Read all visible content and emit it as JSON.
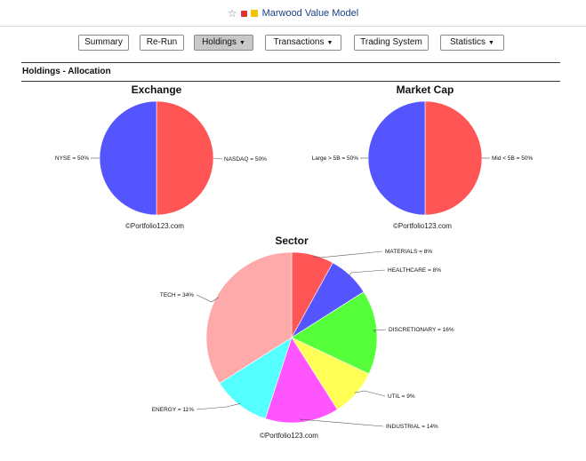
{
  "browser": {
    "page_title": "Marwood Value Model",
    "icons": [
      "star-icon",
      "lock-icon",
      "note-icon"
    ]
  },
  "nav": {
    "items": [
      {
        "label": "Summary",
        "dropdown": false,
        "active": false
      },
      {
        "label": "Re-Run",
        "dropdown": false,
        "active": false
      },
      {
        "label": "Holdings",
        "dropdown": true,
        "active": true
      },
      {
        "label": "Transactions",
        "dropdown": true,
        "active": false
      },
      {
        "label": "Trading System",
        "dropdown": false,
        "active": false
      },
      {
        "label": "Statistics",
        "dropdown": true,
        "active": false
      }
    ]
  },
  "section": {
    "title": "Holdings - Allocation"
  },
  "copyright": "©Portfolio123.com",
  "chart_data": [
    {
      "type": "pie",
      "title": "Exchange",
      "slices": [
        {
          "label": "NASDAQ = 50%",
          "value": 50,
          "color": "#ff5555"
        },
        {
          "label": "NYSE = 50%",
          "value": 50,
          "color": "#5555ff"
        }
      ]
    },
    {
      "type": "pie",
      "title": "Market Cap",
      "slices": [
        {
          "label": "Mid < 5B = 50%",
          "value": 50,
          "color": "#ff5555"
        },
        {
          "label": "Large > 5B = 50%",
          "value": 50,
          "color": "#5555ff"
        }
      ]
    },
    {
      "type": "pie",
      "title": "Sector",
      "slices": [
        {
          "label": "MATERIALS = 8%",
          "value": 8,
          "color": "#ff5555"
        },
        {
          "label": "HEALTHCARE = 8%",
          "value": 8,
          "color": "#5555ff"
        },
        {
          "label": "DISCRETIONARY = 16%",
          "value": 16,
          "color": "#55ff3a"
        },
        {
          "label": "UTIL = 9%",
          "value": 9,
          "color": "#ffff55"
        },
        {
          "label": "INDUSTRIAL = 14%",
          "value": 14,
          "color": "#ff55ff"
        },
        {
          "label": "ENERGY = 11%",
          "value": 11,
          "color": "#55ffff"
        },
        {
          "label": "TECH = 34%",
          "value": 34,
          "color": "#ffaaaa"
        }
      ]
    }
  ]
}
